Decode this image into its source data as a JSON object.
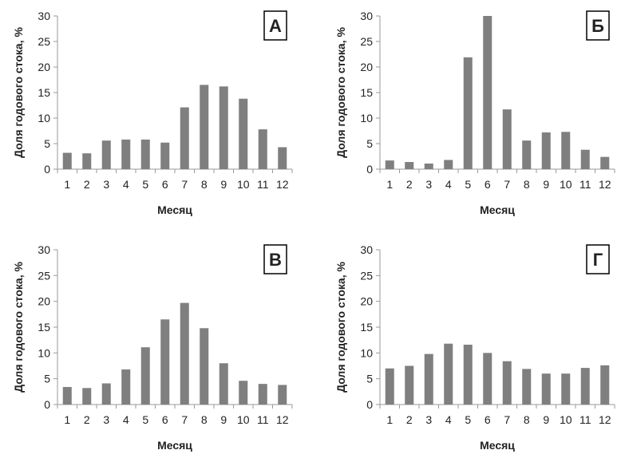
{
  "colors": {
    "bar": "#7f7f7f",
    "axis": "#999999",
    "text": "#222222"
  },
  "chart_data": [
    {
      "type": "bar",
      "panel_label": "А",
      "xlabel": "Месяц",
      "ylabel": "Доля годового стока, %",
      "categories": [
        "1",
        "2",
        "3",
        "4",
        "5",
        "6",
        "7",
        "8",
        "9",
        "10",
        "11",
        "12"
      ],
      "values": [
        3.2,
        3.1,
        5.6,
        5.8,
        5.8,
        5.2,
        12.1,
        16.5,
        16.2,
        13.8,
        7.8,
        4.3
      ],
      "yticks": [
        "0",
        "5",
        "10",
        "15",
        "20",
        "25",
        "30"
      ],
      "ylim": [
        0,
        30
      ],
      "grid": false
    },
    {
      "type": "bar",
      "panel_label": "Б",
      "xlabel": "Месяц",
      "ylabel": "Доля годового стока, %",
      "categories": [
        "1",
        "2",
        "3",
        "4",
        "5",
        "6",
        "7",
        "8",
        "9",
        "10",
        "11",
        "12"
      ],
      "values": [
        1.7,
        1.4,
        1.1,
        1.8,
        21.9,
        30.0,
        11.7,
        5.6,
        7.2,
        7.3,
        3.8,
        2.4
      ],
      "yticks": [
        "0",
        "5",
        "10",
        "15",
        "20",
        "25",
        "30"
      ],
      "ylim": [
        0,
        30
      ],
      "grid": false
    },
    {
      "type": "bar",
      "panel_label": "В",
      "xlabel": "Месяц",
      "ylabel": "Доля годового стока, %",
      "categories": [
        "1",
        "2",
        "3",
        "4",
        "5",
        "6",
        "7",
        "8",
        "9",
        "10",
        "11",
        "12"
      ],
      "values": [
        3.4,
        3.2,
        4.1,
        6.8,
        11.1,
        16.5,
        19.7,
        14.8,
        8.0,
        4.6,
        4.0,
        3.8
      ],
      "yticks": [
        "0",
        "5",
        "10",
        "15",
        "20",
        "25",
        "30"
      ],
      "ylim": [
        0,
        30
      ],
      "grid": false
    },
    {
      "type": "bar",
      "panel_label": "Г",
      "xlabel": "Месяц",
      "ylabel": "Доля годового стока, %",
      "categories": [
        "1",
        "2",
        "3",
        "4",
        "5",
        "6",
        "7",
        "8",
        "9",
        "10",
        "11",
        "12"
      ],
      "values": [
        7.0,
        7.5,
        9.8,
        11.8,
        11.6,
        10.0,
        8.4,
        6.9,
        6.0,
        6.0,
        7.1,
        7.6
      ],
      "yticks": [
        "0",
        "5",
        "10",
        "15",
        "20",
        "25",
        "30"
      ],
      "ylim": [
        0,
        30
      ],
      "grid": false
    }
  ]
}
